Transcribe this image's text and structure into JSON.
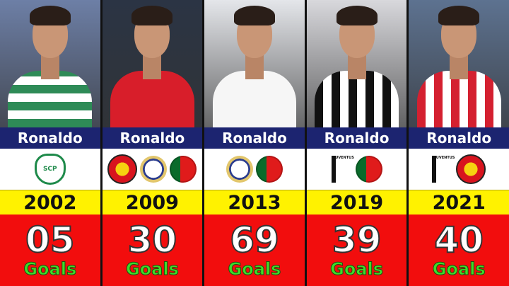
{
  "columns": [
    {
      "name": "Ronaldo",
      "year": "2002",
      "goals": "05",
      "goals_label": "Goals",
      "logos": [
        "sporting-cp-crest"
      ],
      "logo_text": [
        "SCP"
      ],
      "photo_bg": "#6d7fa6",
      "shirt": "#2e8b57",
      "shirt2": "#ffffff"
    },
    {
      "name": "Ronaldo",
      "year": "2009",
      "goals": "30",
      "goals_label": "Goals",
      "logos": [
        "manchester-united-crest",
        "real-madrid-crest",
        "portugal-flag"
      ],
      "logo_text": [
        "",
        "",
        ""
      ],
      "photo_bg": "#2b3444",
      "shirt": "#d81e2a",
      "shirt2": "#d81e2a"
    },
    {
      "name": "Ronaldo",
      "year": "2013",
      "goals": "69",
      "goals_label": "Goals",
      "logos": [
        "real-madrid-crest",
        "portugal-flag"
      ],
      "logo_text": [
        "",
        ""
      ],
      "photo_bg": "#e4e6ea",
      "shirt": "#f6f6f6",
      "shirt2": "#f6f6f6"
    },
    {
      "name": "Ronaldo",
      "year": "2019",
      "goals": "39",
      "goals_label": "Goals",
      "logos": [
        "juventus-crest",
        "portugal-flag"
      ],
      "logo_text": [
        "JUVENTUS",
        ""
      ],
      "photo_bg": "#d8d8dc",
      "shirt": "#111111",
      "shirt2": "#ffffff"
    },
    {
      "name": "Ronaldo",
      "year": "2021",
      "goals": "40",
      "goals_label": "Goals",
      "logos": [
        "juventus-crest",
        "manchester-united-crest"
      ],
      "logo_text": [
        "JUVENTUS",
        ""
      ],
      "photo_bg": "#5d7290",
      "shirt": "#d42030",
      "shirt2": "#ffffff"
    }
  ]
}
